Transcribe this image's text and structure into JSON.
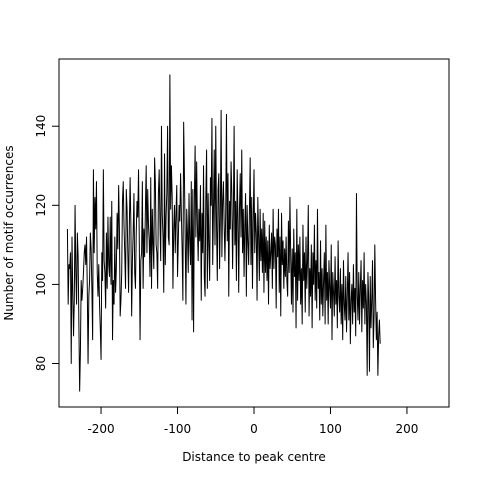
{
  "chart_data": {
    "type": "line",
    "title": "",
    "xlabel": "Distance to peak centre",
    "ylabel": "Number of motif occurrences",
    "xlim": [
      -255,
      255
    ],
    "ylim": [
      69,
      157
    ],
    "x_ticks": [
      -200,
      -100,
      0,
      100,
      200
    ],
    "y_ticks": [
      80,
      100,
      120,
      140
    ],
    "grid": false,
    "legend": "none",
    "line_color": "#000000",
    "series": [
      {
        "x_start": -244,
        "x_step": 1,
        "values": [
          114,
          95,
          105,
          104,
          108,
          80,
          112,
          98,
          87,
          96,
          120,
          103,
          95,
          113,
          107,
          90,
          73,
          83,
          101,
          96,
          99,
          103,
          108,
          110,
          105,
          112,
          99,
          80,
          97,
          101,
          113,
          109,
          99,
          86,
          129,
          108,
          122,
          114,
          126,
          103,
          97,
          105,
          95,
          89,
          81,
          108,
          101,
          129,
          106,
          103,
          94,
          113,
          99,
          117,
          105,
          102,
          117,
          100,
          121,
          86,
          101,
          95,
          112,
          98,
          104,
          118,
          109,
          125,
          114,
          92,
          96,
          103,
          121,
          126,
          115,
          108,
          99,
          124,
          119,
          108,
          98,
          115,
          127,
          115,
          92,
          106,
          113,
          123,
          103,
          99,
          113,
          121,
          117,
          129,
          111,
          86,
          106,
          108,
          126,
          99,
          114,
          107,
          119,
          130,
          108,
          124,
          115,
          111,
          102,
          127,
          99,
          119,
          110,
          104,
          132,
          126,
          110,
          108,
          99,
          123,
          129,
          116,
          106,
          140,
          118,
          112,
          98,
          133,
          105,
          117,
          123,
          140,
          112,
          110,
          153,
          119,
          130,
          122,
          99,
          114,
          120,
          108,
          118,
          125,
          102,
          111,
          120,
          116,
          128,
          118,
          109,
          96,
          141,
          128,
          112,
          95,
          119,
          113,
          103,
          123,
          111,
          105,
          126,
          91,
          124,
          88,
          121,
          135,
          112,
          131,
          115,
          106,
          119,
          111,
          125,
          96,
          118,
          108,
          130,
          102,
          97,
          122,
          134,
          99,
          123,
          110,
          101,
          127,
          120,
          142,
          105,
          119,
          134,
          110,
          140,
          115,
          101,
          124,
          128,
          104,
          117,
          144,
          107,
          121,
          126,
          115,
          106,
          118,
          143,
          111,
          128,
          97,
          121,
          114,
          131,
          123,
          104,
          118,
          140,
          110,
          121,
          101,
          129,
          117,
          98,
          119,
          128,
          112,
          134,
          108,
          119,
          102,
          115,
          123,
          97,
          120,
          111,
          105,
          118,
          132,
          105,
          122,
          99,
          116,
          129,
          108,
          118,
          113,
          96,
          122,
          112,
          101,
          119,
          106,
          114,
          103,
          118,
          98,
          116,
          103,
          112,
          101,
          111,
          95,
          115,
          104,
          108,
          113,
          99,
          119,
          104,
          112,
          110,
          94,
          114,
          107,
          119,
          98,
          112,
          92,
          118,
          105,
          111,
          99,
          109,
          102,
          112,
          101,
          97,
          116,
          103,
          122,
          107,
          95,
          109,
          93,
          114,
          102,
          108,
          89,
          119,
          96,
          110,
          101,
          112,
          95,
          104,
          90,
          115,
          101,
          108,
          93,
          112,
          99,
          106,
          120,
          92,
          104,
          97,
          110,
          89,
          108,
          100,
          115,
          96,
          106,
          94,
          119,
          99,
          103,
          91,
          111,
          95,
          104,
          92,
          101,
          108,
          90,
          115,
          96,
          103,
          90,
          106,
          99,
          94,
          110,
          86,
          103,
          98,
          92,
          107,
          95,
          101,
          89,
          111,
          97,
          93,
          104,
          90,
          100,
          86,
          106,
          95,
          91,
          102,
          88,
          97,
          108,
          91,
          103,
          85,
          96,
          100,
          90,
          105,
          93,
          99,
          87,
          123,
          97,
          91,
          103,
          90,
          99,
          106,
          88,
          101,
          94,
          108,
          90,
          100,
          95,
          77,
          103,
          96,
          78,
          102,
          89,
          96,
          106,
          84,
          92,
          110,
          96,
          86,
          93,
          77,
          87,
          91,
          85
        ]
      }
    ]
  }
}
